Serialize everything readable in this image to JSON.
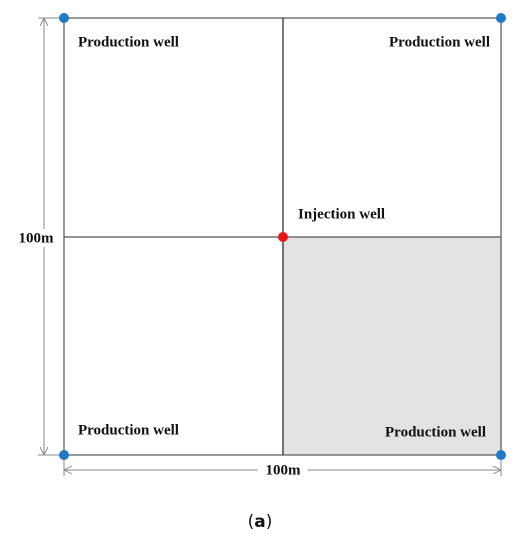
{
  "diagram": {
    "wells": {
      "top_left": "Production well",
      "top_right": "Production well",
      "bottom_left": "Production well",
      "bottom_right": "Production well",
      "center": "Injection well"
    },
    "dimensions": {
      "height": "100m",
      "width": "100m"
    },
    "caption": {
      "open": "(",
      "letter": "a",
      "close": ")"
    }
  }
}
